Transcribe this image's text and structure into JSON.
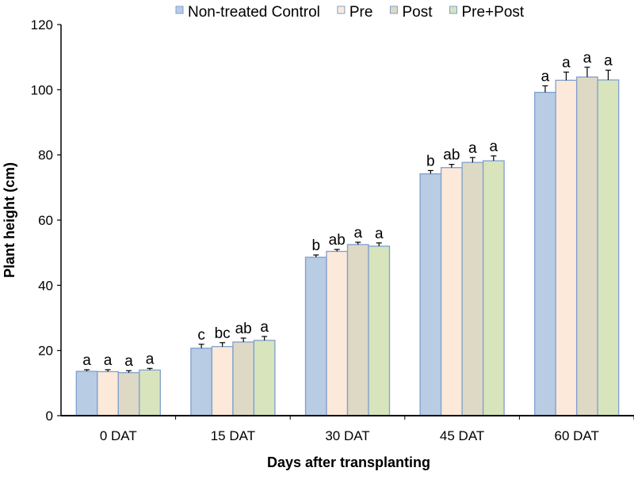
{
  "chart_data": {
    "type": "bar",
    "title": "",
    "xlabel": "Days after transplanting",
    "ylabel": "Plant height (cm)",
    "ylim": [
      0,
      120
    ],
    "yticks": [
      0,
      20,
      40,
      60,
      80,
      100,
      120
    ],
    "grid": false,
    "legend_position": "top",
    "categories": [
      "0 DAT",
      "15 DAT",
      "30 DAT",
      "45 DAT",
      "60 DAT"
    ],
    "series": [
      {
        "name": "Non-treated Control",
        "color": "#b8cce4",
        "values": [
          13.6,
          20.7,
          48.6,
          74.2,
          99.2
        ],
        "errors": [
          0.5,
          1.2,
          0.7,
          1.0,
          2.0
        ],
        "letters": [
          "a",
          "c",
          "b",
          "b",
          "a"
        ]
      },
      {
        "name": "Pre",
        "color": "#fde9d9",
        "values": [
          13.5,
          21.2,
          50.4,
          76.1,
          102.9
        ],
        "errors": [
          0.6,
          1.2,
          0.6,
          1.0,
          2.5
        ],
        "letters": [
          "a",
          "bc",
          "ab",
          "ab",
          "a"
        ]
      },
      {
        "name": "Post",
        "color": "#ddd9c4",
        "values": [
          13.2,
          22.6,
          52.5,
          77.7,
          103.9
        ],
        "errors": [
          0.6,
          1.2,
          0.7,
          1.5,
          3.0
        ],
        "letters": [
          "a",
          "ab",
          "a",
          "a",
          "a"
        ]
      },
      {
        "name": "Pre+Post",
        "color": "#d7e4bc",
        "values": [
          14.0,
          23.1,
          52.0,
          78.2,
          103.0
        ],
        "errors": [
          0.5,
          1.2,
          1.0,
          1.5,
          3.0
        ],
        "letters": [
          "a",
          "a",
          "a",
          "a",
          "a"
        ]
      }
    ],
    "bar_border_color": "#7f9fcf"
  }
}
